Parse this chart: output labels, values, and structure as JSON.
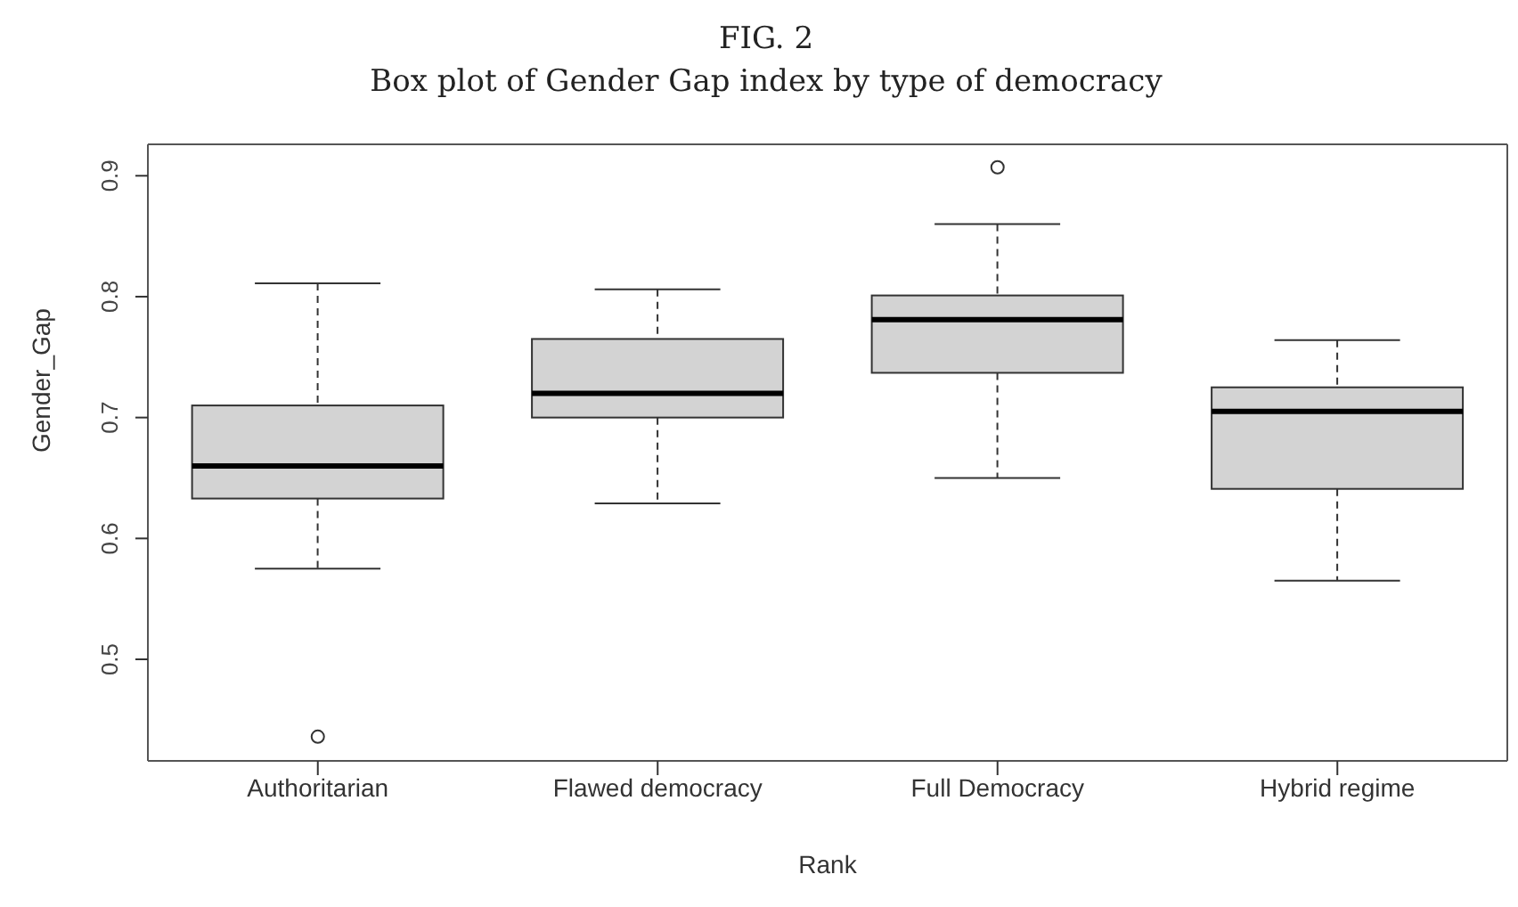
{
  "chart_data": {
    "type": "box",
    "title": "FIG. 2",
    "subtitle": "Box plot of Gender Gap index by type of democracy",
    "xlabel": "Rank",
    "ylabel": "Gender_Gap",
    "categories": [
      "Authoritarian",
      "Flawed democracy",
      "Full Democracy",
      "Hybrid regime"
    ],
    "boxes": [
      {
        "low": 0.575,
        "q1": 0.633,
        "median": 0.66,
        "q3": 0.71,
        "high": 0.811,
        "outliers": [
          0.436
        ]
      },
      {
        "low": 0.629,
        "q1": 0.7,
        "median": 0.72,
        "q3": 0.765,
        "high": 0.806
      },
      {
        "low": 0.65,
        "q1": 0.737,
        "median": 0.781,
        "q3": 0.801,
        "high": 0.86,
        "outliers": [
          0.907
        ]
      },
      {
        "low": 0.565,
        "q1": 0.641,
        "median": 0.705,
        "q3": 0.725,
        "high": 0.764
      }
    ],
    "color": "#d3d3d3",
    "ylim": [
      0.416,
      0.926
    ],
    "yticks": [
      0.5,
      0.6,
      0.7,
      0.8,
      0.9
    ]
  }
}
